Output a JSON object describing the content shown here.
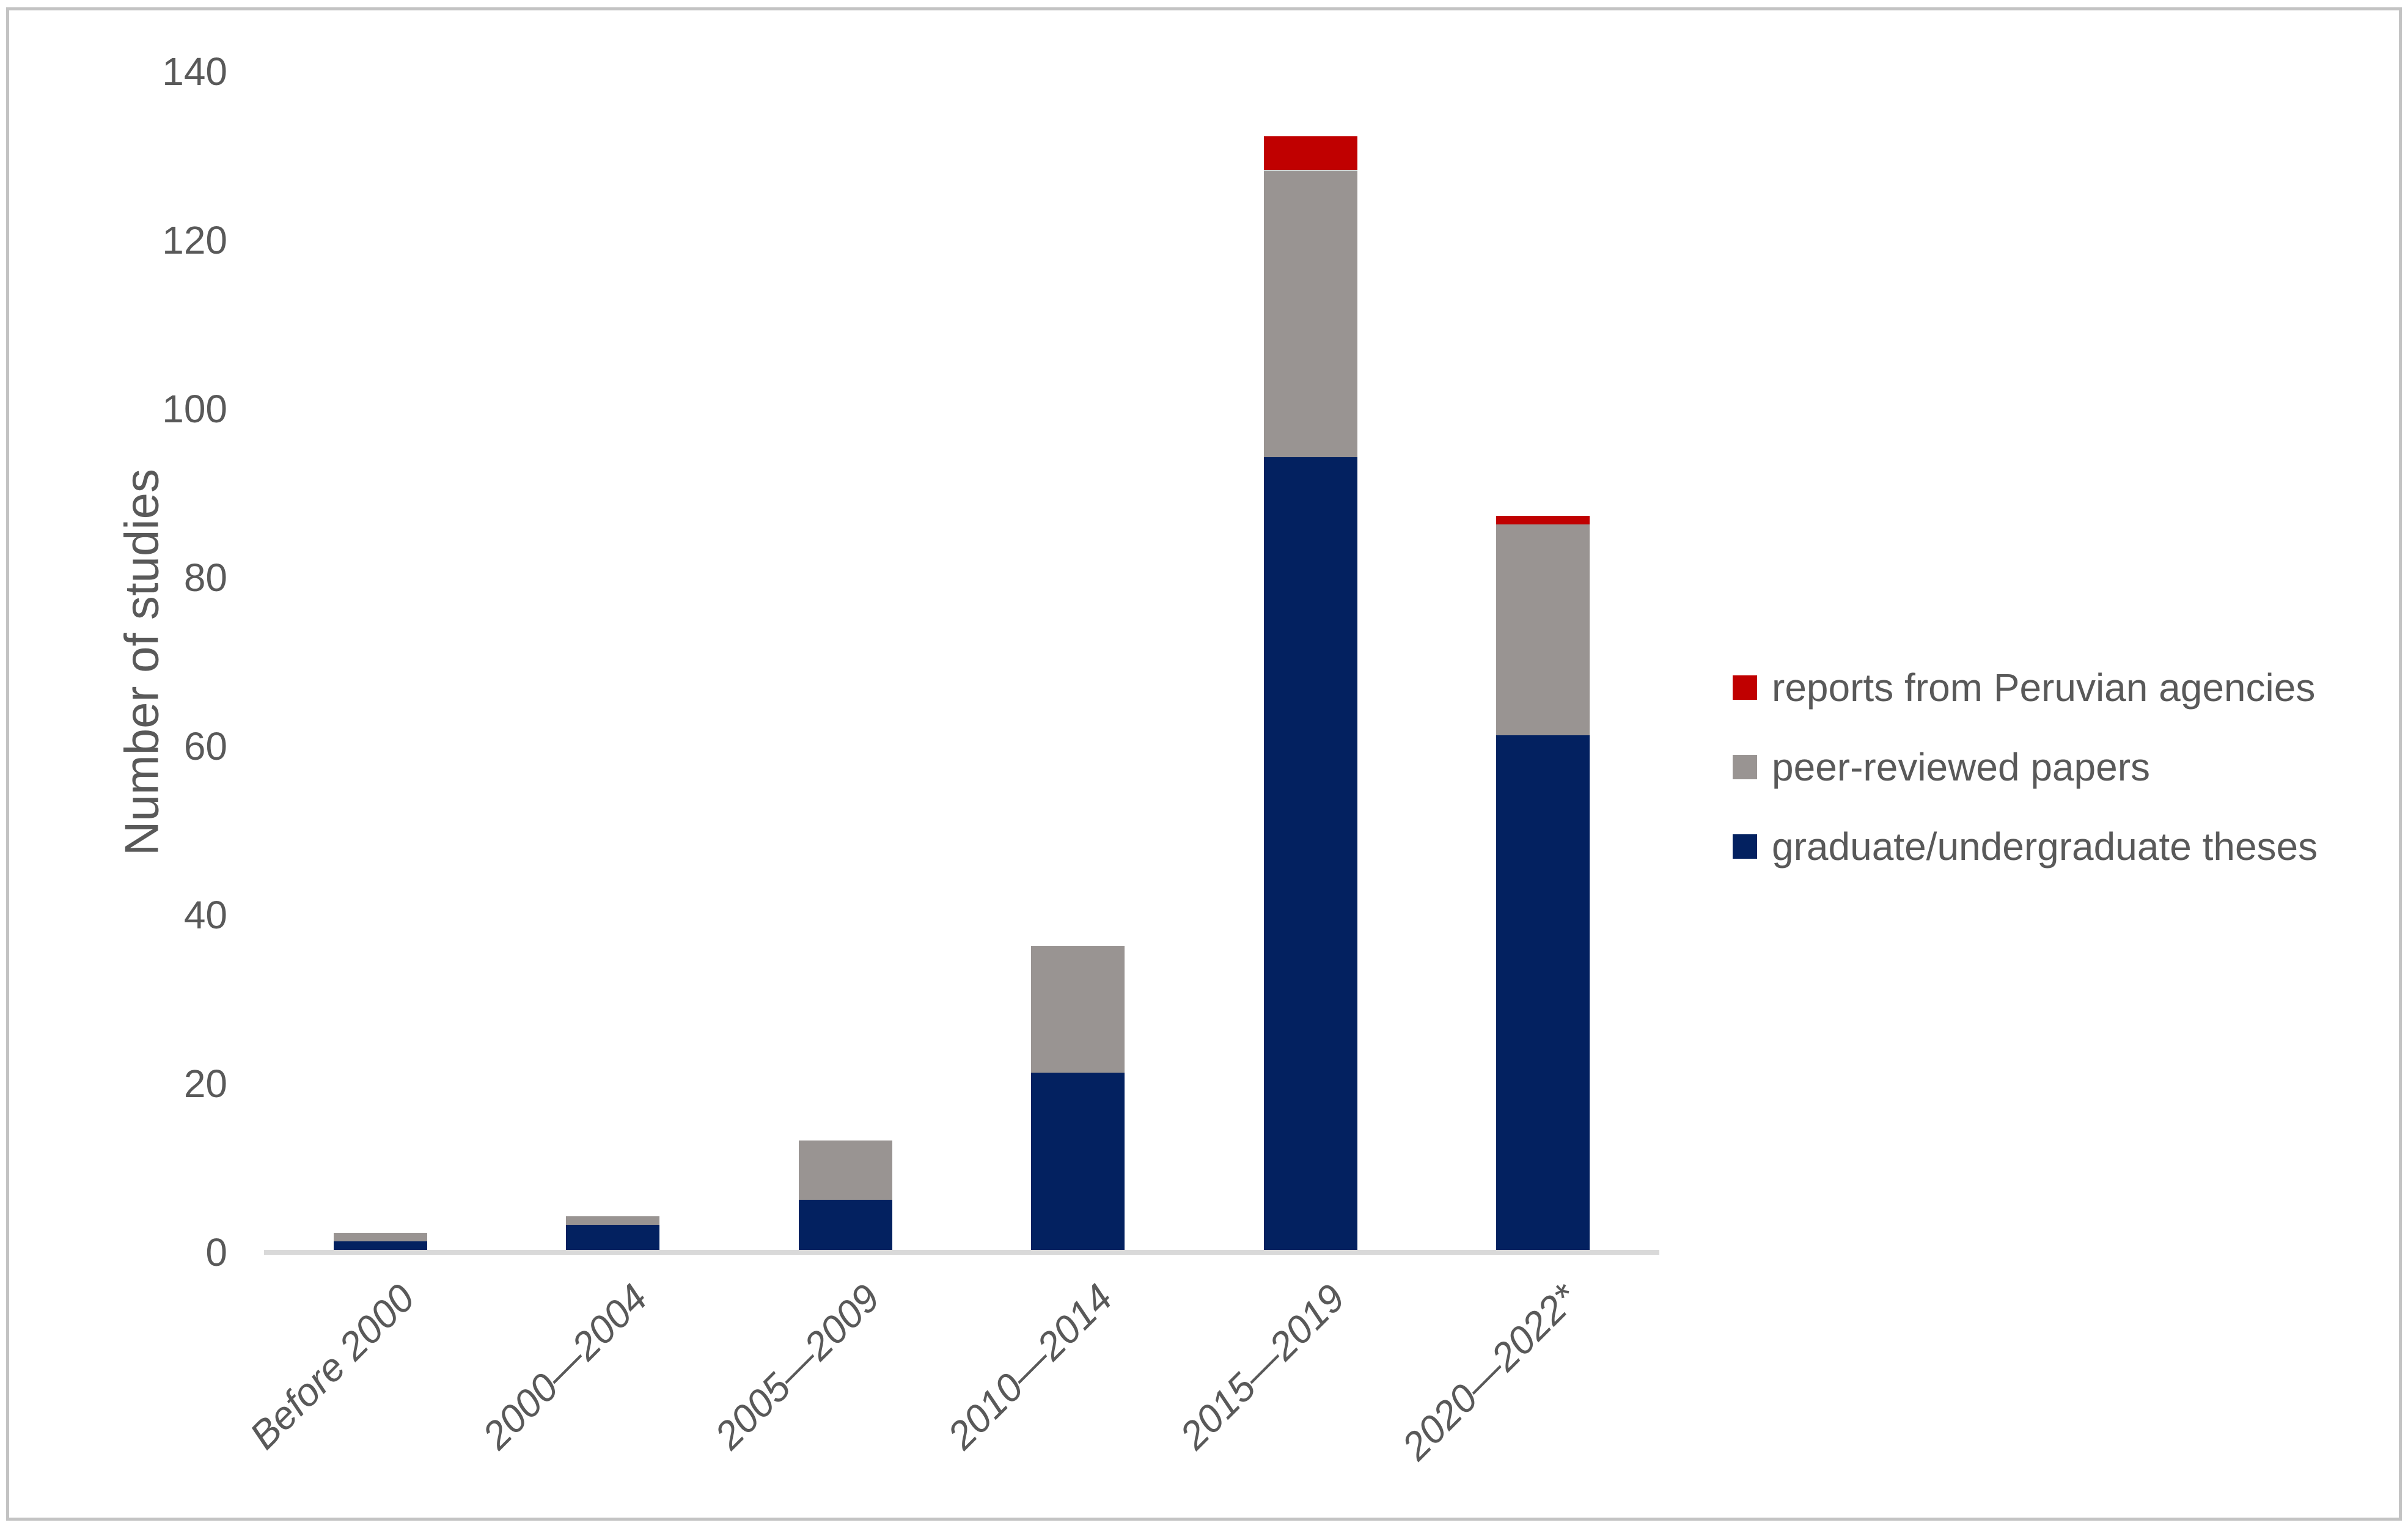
{
  "figure": {
    "background": "#ffffff",
    "border_color": "#c3c3c3",
    "text_color": "#595959",
    "axis_line_color": "#d9d9d9"
  },
  "chart_data": {
    "type": "bar",
    "stacked": true,
    "title": "",
    "xlabel": "",
    "ylabel": "Number of studies",
    "categories": [
      "Before 2000",
      "2000—2004",
      "2005—2009",
      "2010—2014",
      "2015—2019",
      "2020—2022*"
    ],
    "series": [
      {
        "name": "graduate/undergraduate theses",
        "color": "#032160",
        "values": [
          1,
          3,
          6,
          21,
          94,
          61
        ]
      },
      {
        "name": "peer-reviewed papers",
        "color": "#999492",
        "values": [
          1,
          1,
          7,
          15,
          34,
          25
        ]
      },
      {
        "name": "reports from Peruvian agencies",
        "color": "#c00000",
        "values": [
          0,
          0,
          0,
          0,
          4,
          1
        ]
      }
    ],
    "totals": [
      2,
      4,
      13,
      36,
      132,
      87
    ],
    "ylim": [
      0,
      140
    ],
    "yticks": [
      0,
      20,
      40,
      60,
      80,
      100,
      120,
      140
    ],
    "grid": false,
    "legend_position": "right",
    "legend_top_to_bottom": [
      "reports from Peruvian agencies",
      "peer-reviewed papers",
      "graduate/undergraduate theses"
    ]
  }
}
